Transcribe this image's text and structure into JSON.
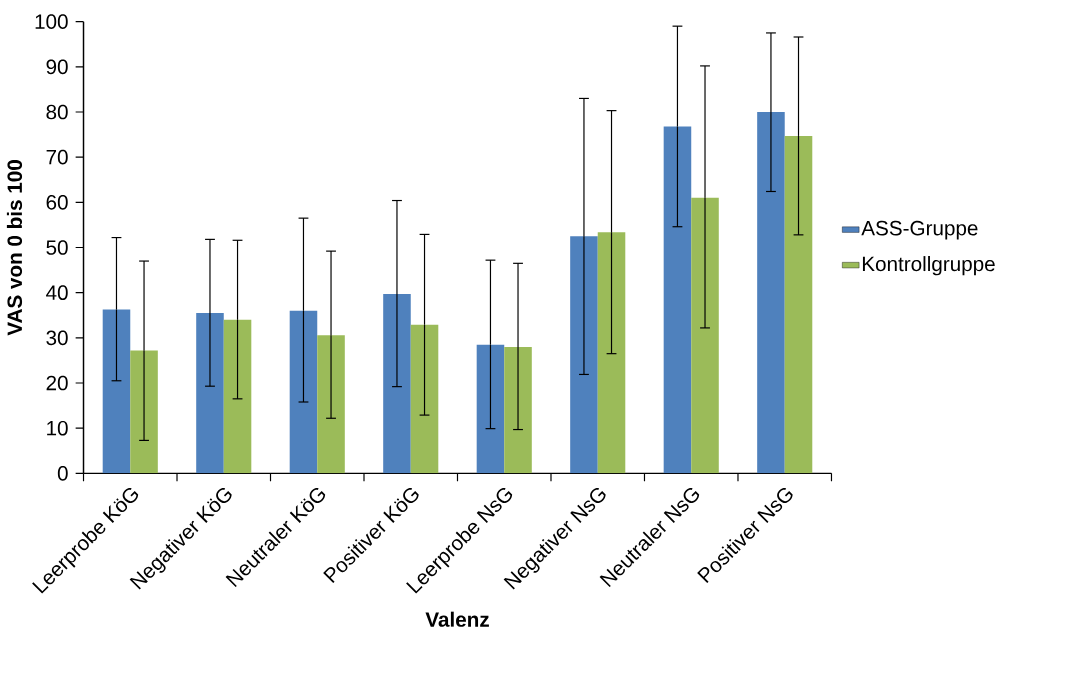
{
  "chart_data": {
    "type": "bar",
    "xlabel": "Valenz",
    "ylabel": "VAS von 0 bis 100",
    "categories": [
      "Leerprobe KöG",
      "Negativer KöG",
      "Neutraler KöG",
      "Positiver KöG",
      "Leerprobe NsG",
      "Negativer NsG",
      "Neutraler NsG",
      "Positiver NsG"
    ],
    "series": [
      {
        "name": "ASS-Gruppe",
        "color": "#4f81bd",
        "values": [
          36.3,
          35.5,
          36,
          39.7,
          28.5,
          52.5,
          76.8,
          80
        ],
        "errors": [
          [
            20.5,
            52.2
          ],
          [
            19.3,
            51.8
          ],
          [
            15.8,
            56.5
          ],
          [
            19.2,
            60.4
          ],
          [
            9.9,
            47.2
          ],
          [
            21.9,
            83
          ],
          [
            54.6,
            99
          ],
          [
            62.4,
            97.5
          ]
        ]
      },
      {
        "name": "Kontrollgruppe",
        "color": "#9bbb59",
        "values": [
          27.2,
          34,
          30.6,
          32.9,
          28,
          53.4,
          61,
          74.7
        ],
        "errors": [
          [
            7.3,
            47
          ],
          [
            16.5,
            51.6
          ],
          [
            12.2,
            49.2
          ],
          [
            12.9,
            52.9
          ],
          [
            9.7,
            46.5
          ],
          [
            26.5,
            80.3
          ],
          [
            32.2,
            90.2
          ],
          [
            52.8,
            96.6
          ]
        ]
      }
    ],
    "ylim": [
      0,
      100
    ],
    "yticks": [
      0,
      10,
      20,
      30,
      40,
      50,
      60,
      70,
      80,
      90,
      100
    ],
    "legend": "right"
  }
}
